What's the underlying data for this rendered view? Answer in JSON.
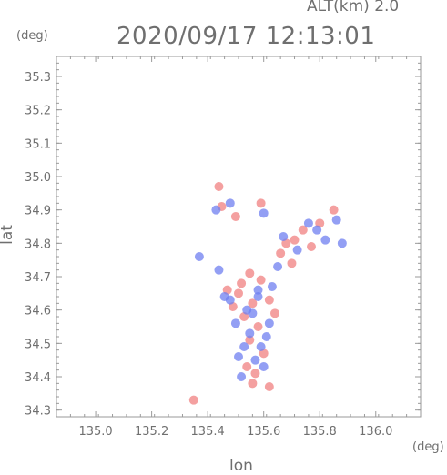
{
  "header": {
    "altitude_label": "ALT(km) 2.0",
    "datetime": "2020/09/17 12:13:01",
    "y_unit": "(deg)",
    "x_unit": "(deg)"
  },
  "colors": {
    "axis": "#9a9a9a",
    "text": "#6f6f6f",
    "positive": "#f08080",
    "negative": "#6f7ff0"
  },
  "chart_data": {
    "type": "scatter",
    "xlabel": "lon",
    "ylabel": "lat",
    "xlim": [
      134.86,
      136.16
    ],
    "ylim": [
      34.28,
      35.36
    ],
    "x_ticks": [
      135.0,
      135.2,
      135.4,
      135.6,
      135.8,
      136.0
    ],
    "y_ticks": [
      34.3,
      34.4,
      34.5,
      34.6,
      34.7,
      34.8,
      34.9,
      35.0,
      35.1,
      35.2,
      35.3
    ],
    "x_tick_labels": [
      "135.0",
      "135.2",
      "135.4",
      "135.6",
      "135.8",
      "136.0"
    ],
    "y_tick_labels": [
      "34.3",
      "34.4",
      "34.5",
      "34.6",
      "34.7",
      "34.8",
      "34.9",
      "35.0",
      "35.1",
      "35.2",
      "35.3"
    ],
    "grid": false,
    "series": [
      {
        "values": [
          [
            135.56,
            34.62
          ],
          [
            135.53,
            34.58
          ],
          [
            135.58,
            34.55
          ],
          [
            135.51,
            34.65
          ],
          [
            135.55,
            34.51
          ],
          [
            135.6,
            34.47
          ],
          [
            135.54,
            34.43
          ],
          [
            135.57,
            34.41
          ],
          [
            135.49,
            34.61
          ],
          [
            135.62,
            34.63
          ],
          [
            135.47,
            34.66
          ],
          [
            135.64,
            34.59
          ],
          [
            135.52,
            34.68
          ],
          [
            135.59,
            34.69
          ],
          [
            135.55,
            34.71
          ],
          [
            135.66,
            34.77
          ],
          [
            135.71,
            34.81
          ],
          [
            135.74,
            34.84
          ],
          [
            135.8,
            34.86
          ],
          [
            135.85,
            34.9
          ],
          [
            135.45,
            34.91
          ],
          [
            135.5,
            34.88
          ],
          [
            135.59,
            34.92
          ],
          [
            135.44,
            34.97
          ],
          [
            135.35,
            34.33
          ],
          [
            135.62,
            34.37
          ],
          [
            135.56,
            34.38
          ],
          [
            135.68,
            34.8
          ],
          [
            135.77,
            34.79
          ],
          [
            135.7,
            34.74
          ]
        ]
      },
      {
        "values": [
          [
            135.54,
            34.6
          ],
          [
            135.58,
            34.64
          ],
          [
            135.5,
            34.56
          ],
          [
            135.61,
            34.52
          ],
          [
            135.53,
            34.49
          ],
          [
            135.57,
            34.45
          ],
          [
            135.48,
            34.63
          ],
          [
            135.63,
            34.67
          ],
          [
            135.55,
            34.53
          ],
          [
            135.6,
            34.43
          ],
          [
            135.52,
            34.4
          ],
          [
            135.46,
            34.64
          ],
          [
            135.67,
            34.82
          ],
          [
            135.72,
            34.78
          ],
          [
            135.76,
            34.86
          ],
          [
            135.82,
            34.81
          ],
          [
            135.86,
            34.87
          ],
          [
            135.43,
            34.9
          ],
          [
            135.48,
            34.92
          ],
          [
            135.6,
            34.89
          ],
          [
            135.37,
            34.76
          ],
          [
            135.44,
            34.72
          ],
          [
            135.58,
            34.66
          ],
          [
            135.65,
            34.73
          ],
          [
            135.79,
            34.84
          ],
          [
            135.51,
            34.46
          ],
          [
            135.59,
            34.49
          ],
          [
            135.56,
            34.59
          ],
          [
            135.62,
            34.56
          ],
          [
            135.88,
            34.8
          ]
        ]
      }
    ]
  }
}
